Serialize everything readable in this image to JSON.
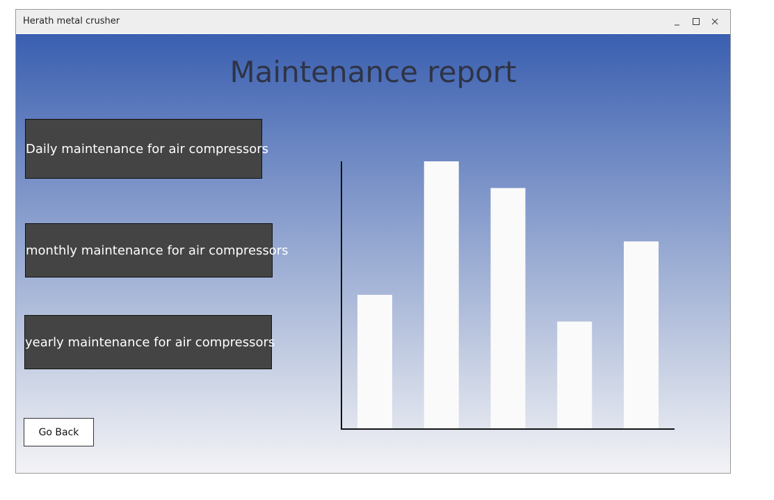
{
  "window": {
    "title": "Herath metal crusher"
  },
  "header": {
    "title": "Maintenance report"
  },
  "buttons": [
    "Daily maintenance for air compressors",
    "monthly maintenance for air compressors",
    "yearly maintenance for air compressors",
    "Go Back"
  ],
  "chart_data": {
    "type": "bar",
    "values": [
      50,
      100,
      90,
      40,
      70
    ],
    "color": "#fafafa",
    "ylim": [
      0,
      100
    ]
  }
}
